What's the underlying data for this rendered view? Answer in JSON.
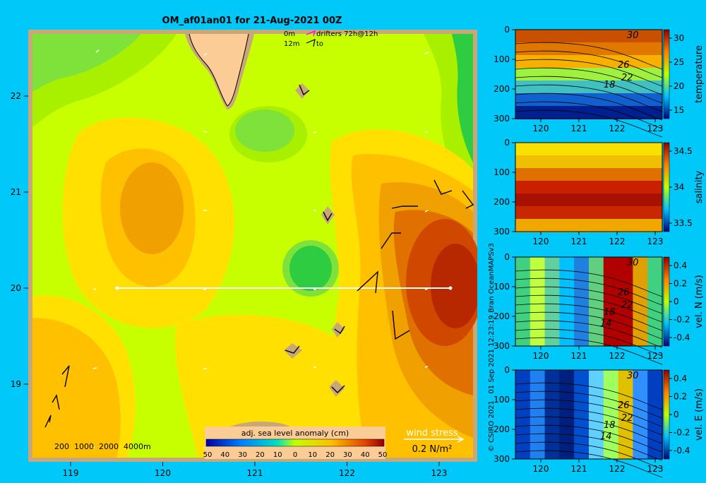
{
  "title": "OM_af01an01 for 21-Aug-2021 00Z",
  "legend_top": {
    "line1_depth": "0m",
    "line1_text": "drifters 72h@12h",
    "line2_depth": "12m",
    "line2_text": "to"
  },
  "map": {
    "x_ticks": [
      "119",
      "120",
      "121",
      "122",
      "123"
    ],
    "y_ticks": [
      "22",
      "21",
      "20",
      "19"
    ],
    "bathymetry_label": "200  1000  2000  4000m",
    "colorbar_title": "adj. sea level anomaly (cm)",
    "colorbar_ticks": [
      "-50",
      "-40",
      "-30",
      "-20",
      "-10",
      "0",
      "10",
      "20",
      "30",
      "40",
      "50"
    ],
    "wind_stress_label": "wind stress",
    "wind_stress_scale": "0.2 N/m²"
  },
  "credit": "© CSIRO 2021   01 Sep 2021 12:23:19 Bran OceanMAPSv3",
  "panels": [
    {
      "name": "temperature",
      "label": "temperature",
      "y_ticks": [
        "0",
        "100",
        "200",
        "300"
      ],
      "x_ticks": [
        "120",
        "121",
        "122",
        "123"
      ],
      "cbar_ticks": [
        "30",
        "25",
        "20",
        "15"
      ],
      "contour_labels": [
        "30",
        "26",
        "22",
        "18"
      ]
    },
    {
      "name": "salinity",
      "label": "salinity",
      "y_ticks": [
        "0",
        "100",
        "200",
        "300"
      ],
      "x_ticks": [
        "120",
        "121",
        "122",
        "123"
      ],
      "cbar_ticks": [
        "34.5",
        "34",
        "33.5"
      ],
      "contour_labels": []
    },
    {
      "name": "vel-n",
      "label": "vel. N (m/s)",
      "y_ticks": [
        "0",
        "100",
        "200",
        "300"
      ],
      "x_ticks": [
        "120",
        "121",
        "122",
        "123"
      ],
      "cbar_ticks": [
        "0.4",
        "0.2",
        "0",
        "-0.2",
        "-0.4"
      ],
      "contour_labels": [
        "30",
        "26",
        "22",
        "18",
        "14"
      ]
    },
    {
      "name": "vel-e",
      "label": "vel. E (m/s)",
      "y_ticks": [
        "0",
        "100",
        "200",
        "300"
      ],
      "x_ticks": [
        "120",
        "121",
        "122",
        "123"
      ],
      "cbar_ticks": [
        "0.4",
        "0.2",
        "0",
        "-0.2",
        "-0.4"
      ],
      "contour_labels": [
        "30",
        "26",
        "22",
        "18",
        "14"
      ]
    }
  ]
}
